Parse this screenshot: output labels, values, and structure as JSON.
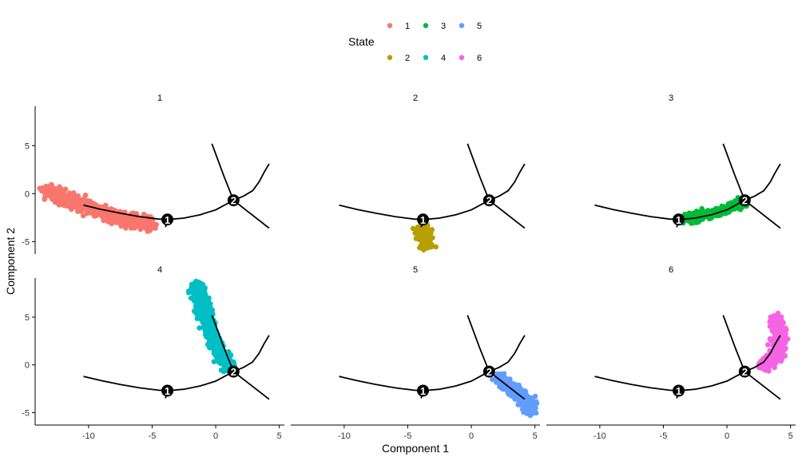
{
  "chart_data": {
    "type": "scatter",
    "layout": "facets 2 rows x 3 columns",
    "xlabel": "Component 1",
    "ylabel": "Component 2",
    "xlim": [
      -14.2,
      5.4
    ],
    "ylim": [
      -6.3,
      9.1
    ],
    "xticks": [
      -10,
      -5,
      0,
      5
    ],
    "yticks": [
      -5,
      0,
      5
    ],
    "grid": false,
    "legend": {
      "title": "State",
      "position": "top",
      "entries": [
        {
          "label": "1",
          "color": "#F8766D"
        },
        {
          "label": "2",
          "color": "#B79F00"
        },
        {
          "label": "3",
          "color": "#00BA38"
        },
        {
          "label": "4",
          "color": "#00BFC4"
        },
        {
          "label": "5",
          "color": "#619CFF"
        },
        {
          "label": "6",
          "color": "#F564E3"
        }
      ]
    },
    "trajectory": {
      "color": "#000000",
      "branch_points": [
        {
          "label": "1",
          "x": -3.8,
          "y": -2.7
        },
        {
          "label": "2",
          "x": 1.4,
          "y": -0.7
        }
      ],
      "segments": [
        [
          [
            -10.4,
            -1.2
          ],
          [
            -9,
            -1.65
          ],
          [
            -7.5,
            -2.05
          ],
          [
            -6,
            -2.4
          ],
          [
            -4.5,
            -2.65
          ],
          [
            -3.8,
            -2.7
          ],
          [
            -2.5,
            -2.55
          ],
          [
            -1.2,
            -2.2
          ],
          [
            0,
            -1.7
          ],
          [
            1.4,
            -0.7
          ]
        ],
        [
          [
            -3.8,
            -2.7
          ],
          [
            -3.95,
            -3.5
          ]
        ],
        [
          [
            1.4,
            -0.7
          ],
          [
            0.65,
            1.8
          ],
          [
            -0.3,
            5.2
          ]
        ],
        [
          [
            1.4,
            -0.7
          ],
          [
            2.2,
            -0.25
          ],
          [
            2.9,
            0.3
          ],
          [
            3.4,
            1.2
          ],
          [
            3.8,
            2.2
          ],
          [
            4.2,
            3.1
          ]
        ],
        [
          [
            1.4,
            -0.7
          ],
          [
            4.2,
            -3.6
          ]
        ]
      ]
    },
    "panels": [
      {
        "title": "1",
        "state": "1",
        "color": "#F8766D",
        "n": 800,
        "spread": 0.42,
        "path": [
          [
            -13.2,
            0.5
          ],
          [
            -12.5,
            -0.1
          ],
          [
            -11.5,
            -0.7
          ],
          [
            -10.5,
            -1.2
          ],
          [
            -9.5,
            -1.7
          ],
          [
            -8.5,
            -2.2
          ],
          [
            -7.5,
            -2.6
          ],
          [
            -6.5,
            -2.85
          ],
          [
            -5.1,
            -3.05
          ]
        ]
      },
      {
        "title": "2",
        "state": "2",
        "color": "#B79F00",
        "n": 150,
        "spread": 0.32,
        "path": [
          [
            -3.7,
            -3.75
          ],
          [
            -3.65,
            -4.3
          ],
          [
            -3.6,
            -4.85
          ],
          [
            -3.45,
            -5.35
          ]
        ]
      },
      {
        "title": "3",
        "state": "3",
        "color": "#00BA38",
        "n": 400,
        "spread": 0.3,
        "path": [
          [
            -3.4,
            -2.7
          ],
          [
            -2.3,
            -2.4
          ],
          [
            -1.3,
            -2.1
          ],
          [
            -0.2,
            -1.65
          ],
          [
            0.7,
            -1.25
          ],
          [
            1.2,
            -0.95
          ]
        ]
      },
      {
        "title": "4",
        "state": "4",
        "color": "#00BFC4",
        "n": 700,
        "spread": 0.33,
        "path": [
          [
            -1.5,
            8.4
          ],
          [
            -1.2,
            7.0
          ],
          [
            -0.9,
            5.5
          ],
          [
            -0.5,
            4.0
          ],
          [
            -0.1,
            2.5
          ],
          [
            0.4,
            1.0
          ],
          [
            1.0,
            -0.4
          ]
        ]
      },
      {
        "title": "5",
        "state": "5",
        "color": "#619CFF",
        "n": 500,
        "spread": 0.33,
        "path": [
          [
            2.2,
            -1.3
          ],
          [
            3.0,
            -2.2
          ],
          [
            3.7,
            -3.1
          ],
          [
            4.3,
            -3.9
          ],
          [
            4.7,
            -4.8
          ]
        ]
      },
      {
        "title": "6",
        "state": "6",
        "color": "#F564E3",
        "n": 500,
        "spread": 0.33,
        "path": [
          [
            2.8,
            -0.3
          ],
          [
            3.5,
            0.4
          ],
          [
            4.0,
            1.5
          ],
          [
            4.2,
            2.7
          ],
          [
            4.1,
            3.8
          ],
          [
            3.8,
            4.9
          ]
        ]
      }
    ]
  }
}
